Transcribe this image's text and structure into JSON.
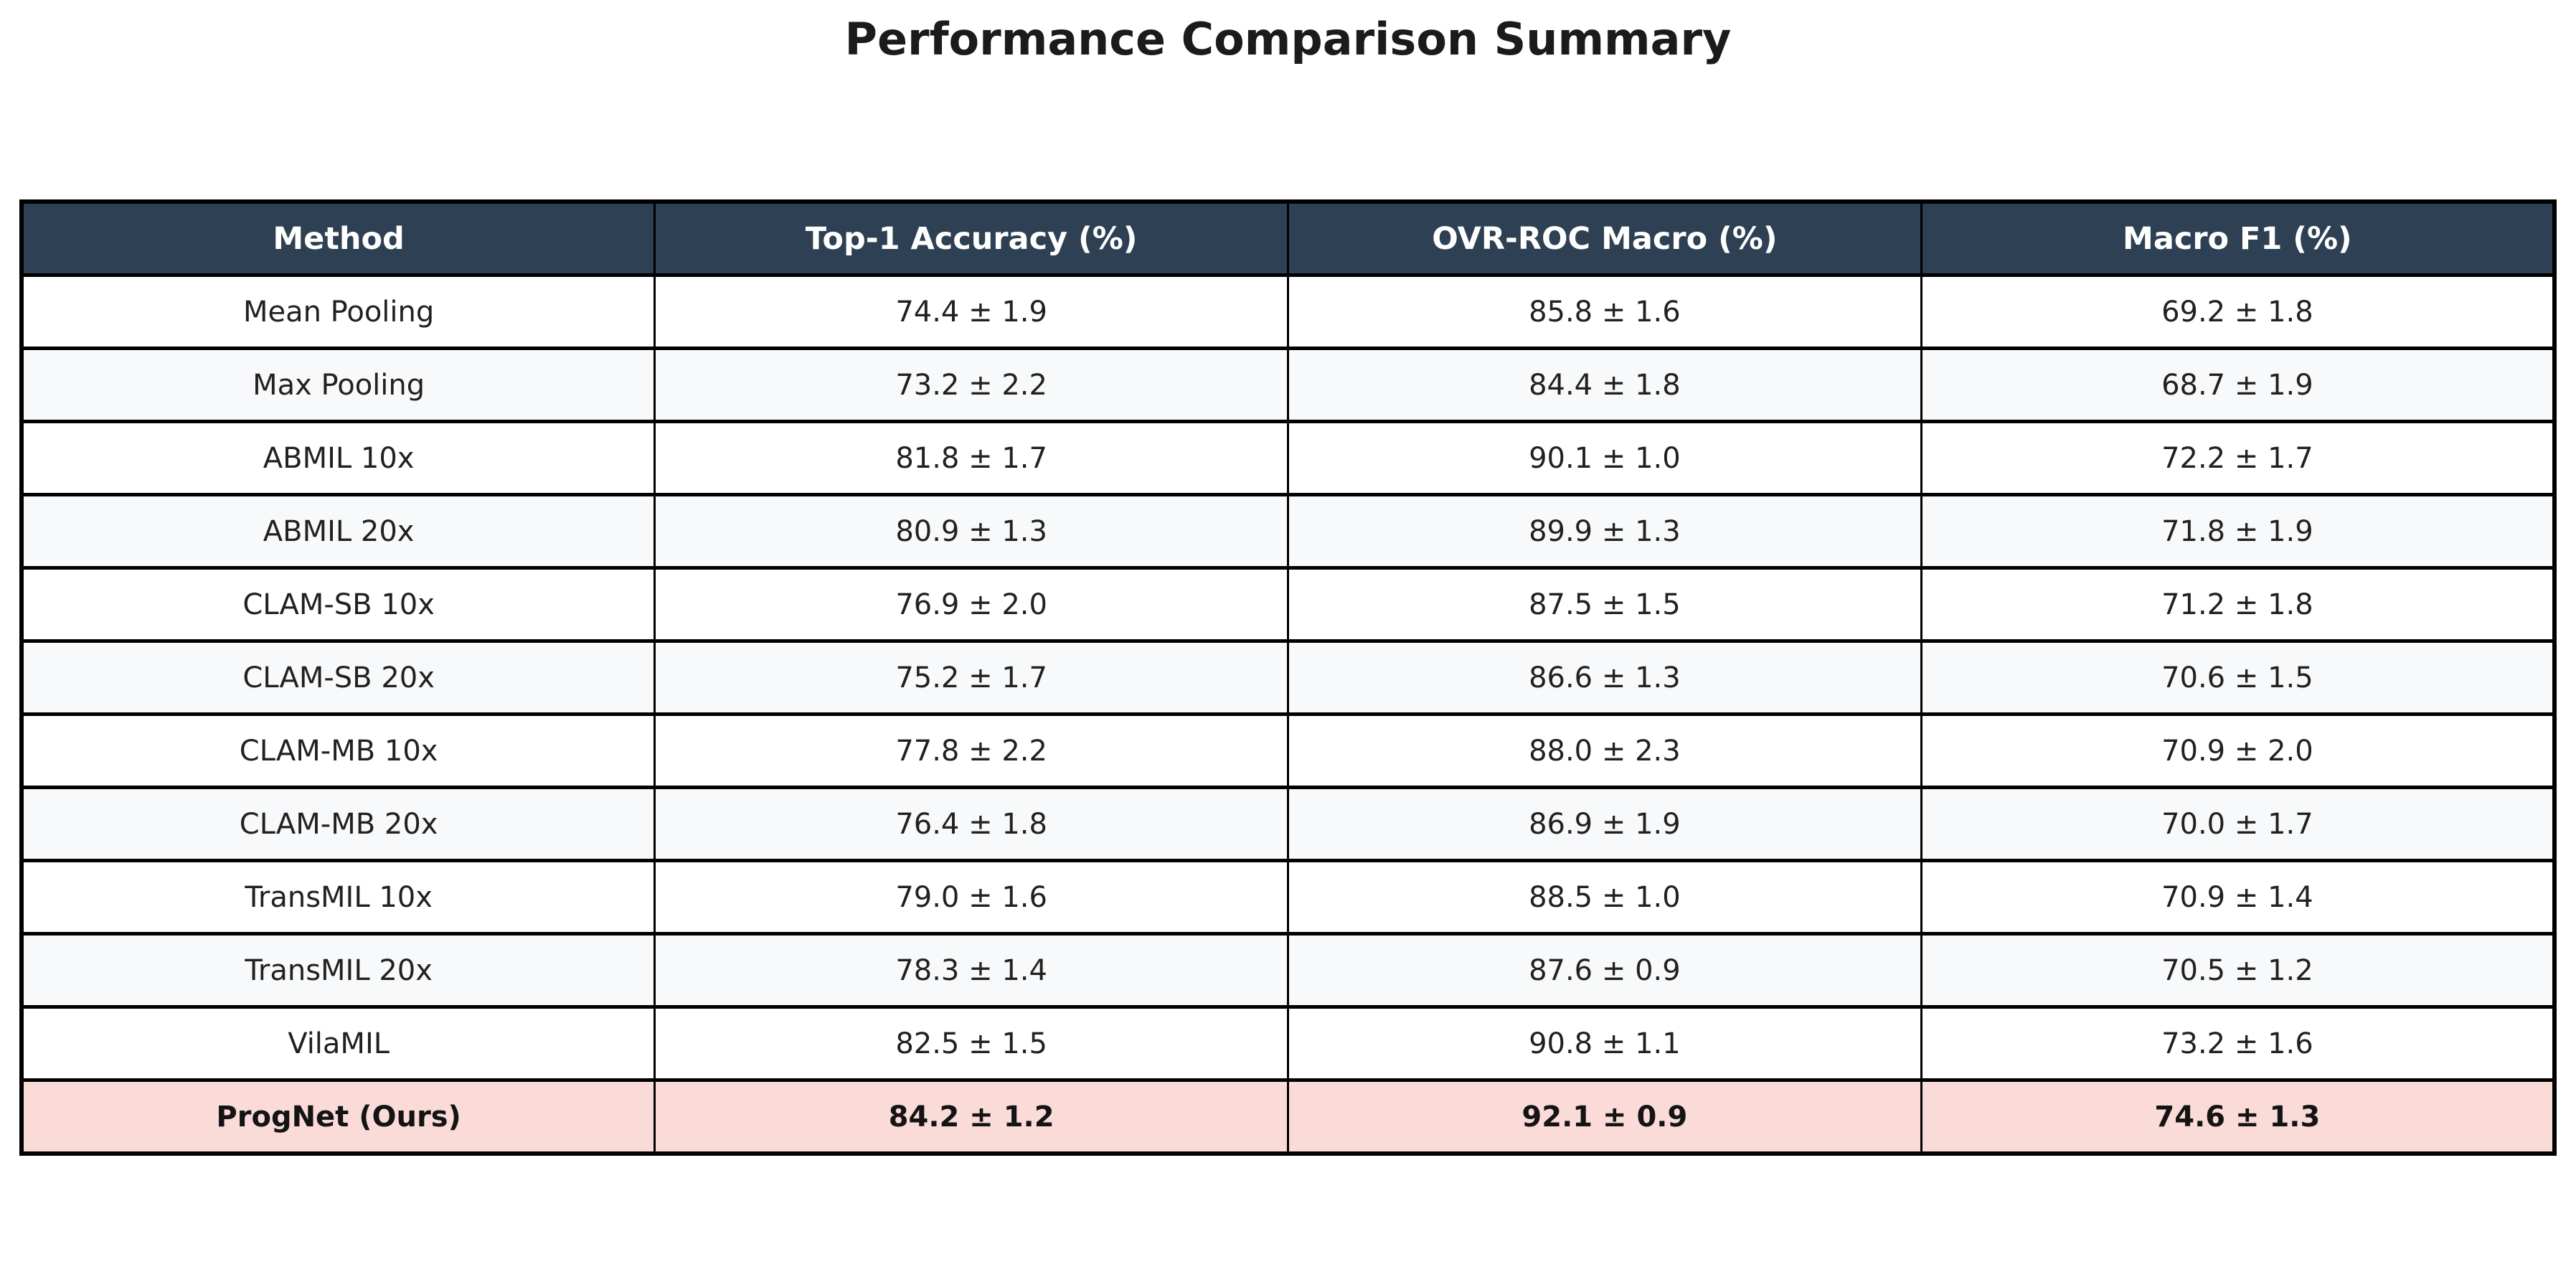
{
  "title": "Performance Comparison Summary",
  "colors": {
    "header_bg": "#2e4053",
    "header_text": "#ffffff",
    "row_alt_bg": "#f8f9fa",
    "highlight_bg": "#fadbd8",
    "border": "#000000",
    "text": "#212121"
  },
  "table": {
    "headers": [
      "Method",
      "Top-1 Accuracy (%)",
      "OVR-ROC Macro (%)",
      "Macro F1 (%)"
    ],
    "rows": [
      {
        "cells": [
          "Mean Pooling",
          "74.4 ± 1.9",
          "85.8 ± 1.6",
          "69.2 ± 1.8"
        ]
      },
      {
        "cells": [
          "Max Pooling",
          "73.2 ± 2.2",
          "84.4 ± 1.8",
          "68.7 ± 1.9"
        ]
      },
      {
        "cells": [
          "ABMIL 10x",
          "81.8 ± 1.7",
          "90.1 ± 1.0",
          "72.2 ± 1.7"
        ]
      },
      {
        "cells": [
          "ABMIL 20x",
          "80.9 ± 1.3",
          "89.9 ± 1.3",
          "71.8 ± 1.9"
        ]
      },
      {
        "cells": [
          "CLAM-SB 10x",
          "76.9 ± 2.0",
          "87.5 ± 1.5",
          "71.2 ± 1.8"
        ]
      },
      {
        "cells": [
          "CLAM-SB 20x",
          "75.2 ± 1.7",
          "86.6 ± 1.3",
          "70.6 ± 1.5"
        ]
      },
      {
        "cells": [
          "CLAM-MB 10x",
          "77.8 ± 2.2",
          "88.0 ± 2.3",
          "70.9 ± 2.0"
        ]
      },
      {
        "cells": [
          "CLAM-MB 20x",
          "76.4 ± 1.8",
          "86.9 ± 1.9",
          "70.0 ± 1.7"
        ]
      },
      {
        "cells": [
          "TransMIL 10x",
          "79.0 ± 1.6",
          "88.5 ± 1.0",
          "70.9 ± 1.4"
        ]
      },
      {
        "cells": [
          "TransMIL 20x",
          "78.3 ± 1.4",
          "87.6 ± 0.9",
          "70.5 ± 1.2"
        ]
      },
      {
        "cells": [
          "VilaMIL",
          "82.5 ± 1.5",
          "90.8 ± 1.1",
          "73.2 ± 1.6"
        ]
      },
      {
        "cells": [
          "ProgNet (Ours)",
          "84.2 ± 1.2",
          "92.1 ± 0.9",
          "74.6 ± 1.3"
        ],
        "highlight": true
      }
    ]
  },
  "chart_data": {
    "type": "table",
    "title": "Performance Comparison Summary",
    "columns": [
      "Method",
      "Top-1 Accuracy (%)",
      "OVR-ROC Macro (%)",
      "Macro F1 (%)"
    ],
    "rows": [
      [
        "Mean Pooling",
        "74.4 ± 1.9",
        "85.8 ± 1.6",
        "69.2 ± 1.8"
      ],
      [
        "Max Pooling",
        "73.2 ± 2.2",
        "84.4 ± 1.8",
        "68.7 ± 1.9"
      ],
      [
        "ABMIL 10x",
        "81.8 ± 1.7",
        "90.1 ± 1.0",
        "72.2 ± 1.7"
      ],
      [
        "ABMIL 20x",
        "80.9 ± 1.3",
        "89.9 ± 1.3",
        "71.8 ± 1.9"
      ],
      [
        "CLAM-SB 10x",
        "76.9 ± 2.0",
        "87.5 ± 1.5",
        "71.2 ± 1.8"
      ],
      [
        "CLAM-SB 20x",
        "75.2 ± 1.7",
        "86.6 ± 1.3",
        "70.6 ± 1.5"
      ],
      [
        "CLAM-MB 10x",
        "77.8 ± 2.2",
        "88.0 ± 2.3",
        "70.9 ± 2.0"
      ],
      [
        "CLAM-MB 20x",
        "76.4 ± 1.8",
        "86.9 ± 1.9",
        "70.0 ± 1.7"
      ],
      [
        "TransMIL 10x",
        "79.0 ± 1.6",
        "88.5 ± 1.0",
        "70.9 ± 1.4"
      ],
      [
        "TransMIL 20x",
        "78.3 ± 1.4",
        "87.6 ± 0.9",
        "70.5 ± 1.2"
      ],
      [
        "VilaMIL",
        "82.5 ± 1.5",
        "90.8 ± 1.1",
        "73.2 ± 1.6"
      ],
      [
        "ProgNet (Ours)",
        "84.2 ± 1.2",
        "92.1 ± 0.9",
        "74.6 ± 1.3"
      ]
    ],
    "highlighted_row": "ProgNet (Ours)",
    "layout": {
      "row_striping": true,
      "header_position": "top",
      "values_format": "mean ± std"
    }
  }
}
